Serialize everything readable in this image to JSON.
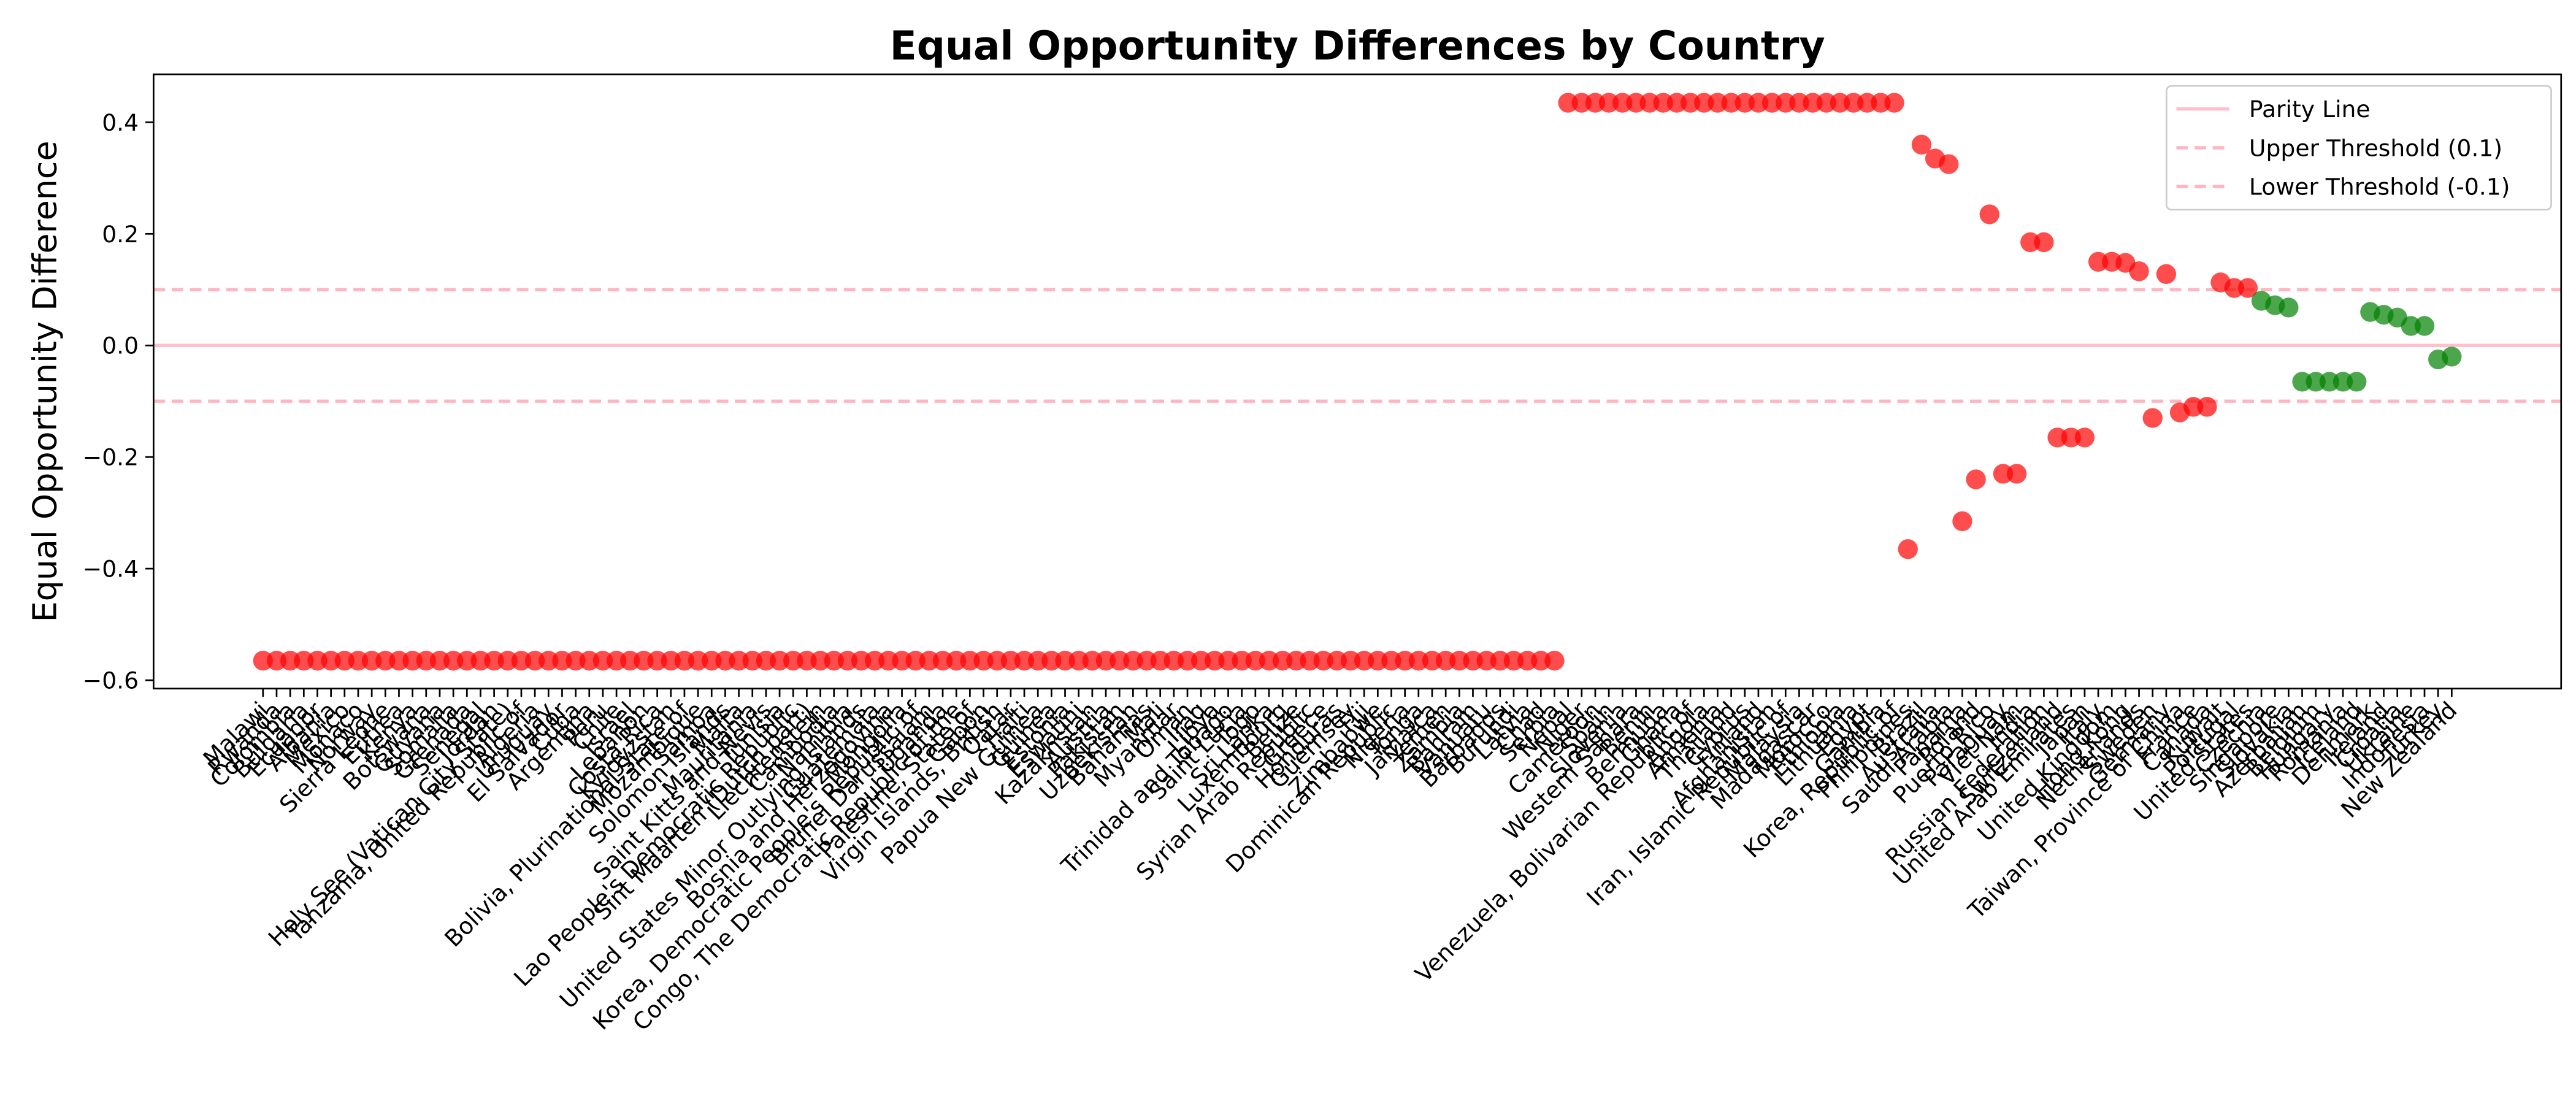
{
  "chart_data": {
    "type": "scatter",
    "title": "Equal Opportunity Differences by Country",
    "ylabel": "Equal Opportunity Difference",
    "categories": [
      "Malawi",
      "Rwanda",
      "Colombia",
      "Bulgaria",
      "Ecuador",
      "Albania",
      "Mexico",
      "Monaco",
      "Norway",
      "Sierra Leone",
      "Eritrea",
      "Kenya",
      "Botswana",
      "Guyana",
      "Somalia",
      "Grenada",
      "Senegal",
      "Jordan",
      "Holy See (Vatican City State)",
      "Tanzania, United Republic of",
      "Algeria",
      "Uruguay",
      "El Salvador",
      "Cuba",
      "Argentina",
      "Peru",
      "Chile",
      "Israel",
      "Lebanon",
      "Costa Rica",
      "Kyrgyzstan",
      "Bolivia, Plurinational State of",
      "Mozambique",
      "Samoa",
      "Solomon Islands",
      "Malta",
      "Mauritania",
      "Saint Kitts and Nevis",
      "Tunisia",
      "Lao People's Democratic Republic",
      "Sint Maarten (Dutch part)",
      "Liechtenstein",
      "Cambodia",
      "Namibia",
      "United States Minor Outlying Islands",
      "Guatemala",
      "Bosnia and Herzegovina",
      "Mongolia",
      "Korea, Democratic People's Republic of",
      "Brunei Darussalam",
      "Uganda",
      "Congo, The Democratic Republic of the",
      "Palestine, State of",
      "Gabon",
      "Virgin Islands, British",
      "Qatar",
      "Haiti",
      "Papua New Guinea",
      "Guinea",
      "Estonia",
      "Eswatini",
      "Kazakhstan",
      "Austria",
      "Pakistan",
      "Uzbekistan",
      "Bahamas",
      "Mali",
      "Myanmar",
      "Oman",
      "Iraq",
      "Libya",
      "Trinidad and Tobago",
      "Saint Lucia",
      "Togo",
      "Sri Lanka",
      "Luxembourg",
      "Belize",
      "Syrian Arab Republic",
      "Greece",
      "Honduras",
      "Guernsey",
      "Fiji",
      "Zimbabwe",
      "Dominican Republic",
      "Nigeria",
      "Tonga",
      "Jamaica",
      "Yemen",
      "Zambia",
      "Bahrain",
      "Vanuatu",
      "Barbados",
      "Burundi",
      "Latvia",
      "Chad",
      "Serbia",
      "Nepal",
      "Niger",
      "Cameroon",
      "Spain",
      "Slovenia",
      "Western Sahara",
      "Benin",
      "Bermuda",
      "Ghana",
      "Venezuela, Bolivarian Republic of",
      "Angola",
      "Armenia",
      "Thailand",
      "Cyprus",
      "Finland",
      "Afghanistan",
      "Iran, Islamic Republic of",
      "Malaysia",
      "Madagascar",
      "Morocco",
      "Ethiopia",
      "Lithuania",
      "Egypt",
      "Gambia",
      "Korea, Republic of",
      "Philippines",
      "Brazil",
      "Australia",
      "Saudi Arabia",
      "Panama",
      "Poland",
      "Puerto Rico",
      "Paraguay",
      "Viet Nam",
      "India",
      "Russian Federation",
      "Switzerland",
      "United Arab Emirates",
      "Japan",
      "Italy",
      "United Kingdom",
      "Hong Kong",
      "Netherlands",
      "Sweden",
      "Germany",
      "Taiwan, Province of China",
      "France",
      "Canada",
      "Kuwait",
      "Portugal",
      "United States",
      "Czechia",
      "Singapore",
      "Slovakia",
      "Azerbaijan",
      "Belgium",
      "Hungary",
      "Romania",
      "Iceland",
      "Denmark",
      "Ireland",
      "Croatia",
      "Ukraine",
      "Indonesia",
      "Turkey",
      "New Zealand"
    ],
    "values": [
      -0.565,
      -0.565,
      -0.565,
      -0.565,
      -0.565,
      -0.565,
      -0.565,
      -0.565,
      -0.565,
      -0.565,
      -0.565,
      -0.565,
      -0.565,
      -0.565,
      -0.565,
      -0.565,
      -0.565,
      -0.565,
      -0.565,
      -0.565,
      -0.565,
      -0.565,
      -0.565,
      -0.565,
      -0.565,
      -0.565,
      -0.565,
      -0.565,
      -0.565,
      -0.565,
      -0.565,
      -0.565,
      -0.565,
      -0.565,
      -0.565,
      -0.565,
      -0.565,
      -0.565,
      -0.565,
      -0.565,
      -0.565,
      -0.565,
      -0.565,
      -0.565,
      -0.565,
      -0.565,
      -0.565,
      -0.565,
      -0.565,
      -0.565,
      -0.565,
      -0.565,
      -0.565,
      -0.565,
      -0.565,
      -0.565,
      -0.565,
      -0.565,
      -0.565,
      -0.565,
      -0.565,
      -0.565,
      -0.565,
      -0.565,
      -0.565,
      -0.565,
      -0.565,
      -0.565,
      -0.565,
      -0.565,
      -0.565,
      -0.565,
      -0.565,
      -0.565,
      -0.565,
      -0.565,
      -0.565,
      -0.565,
      -0.565,
      -0.565,
      -0.565,
      -0.565,
      -0.565,
      -0.565,
      -0.565,
      -0.565,
      -0.565,
      -0.565,
      -0.565,
      -0.565,
      -0.565,
      -0.565,
      -0.565,
      -0.565,
      -0.565,
      -0.565,
      0.435,
      0.435,
      0.435,
      0.435,
      0.435,
      0.435,
      0.435,
      0.435,
      0.435,
      0.435,
      0.435,
      0.435,
      0.435,
      0.435,
      0.435,
      0.435,
      0.435,
      0.435,
      0.435,
      0.435,
      0.435,
      0.435,
      0.435,
      0.435,
      0.435,
      -0.365,
      0.36,
      0.335,
      0.325,
      -0.315,
      -0.24,
      0.235,
      -0.23,
      -0.23,
      0.185,
      0.185,
      -0.165,
      -0.165,
      -0.165,
      0.15,
      0.15,
      0.148,
      0.133,
      -0.13,
      0.128,
      -0.12,
      -0.11,
      -0.11,
      0.113,
      0.103,
      0.103,
      0.08,
      0.072,
      0.068,
      -0.065,
      -0.065,
      -0.065,
      -0.065,
      -0.065,
      0.06,
      0.055,
      0.05,
      0.035,
      0.035,
      -0.025,
      -0.02
    ],
    "color_outside": "#ff0000",
    "color_inside": "#008000",
    "reference_lines": [
      {
        "name": "Parity Line",
        "value": 0,
        "style": "solid",
        "color": "#ffc0cb"
      },
      {
        "name": "Upper Threshold (0.1)",
        "value": 0.1,
        "style": "dashed",
        "color": "#ffb6c1"
      },
      {
        "name": "Lower Threshold (-0.1)",
        "value": -0.1,
        "style": "dashed",
        "color": "#ffb6c1"
      }
    ],
    "ylim": [
      -0.615,
      0.486
    ],
    "yticks": [
      {
        "value": -0.6,
        "label": "−0.6"
      },
      {
        "value": -0.4,
        "label": "−0.4"
      },
      {
        "value": -0.2,
        "label": "−0.2"
      },
      {
        "value": 0,
        "label": "0.0"
      },
      0.2,
      0.4
    ],
    "legend": "upper right"
  }
}
